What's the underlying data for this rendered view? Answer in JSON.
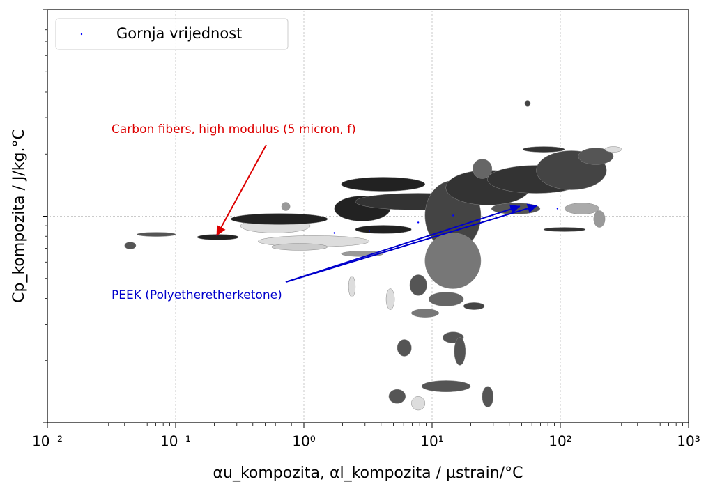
{
  "chart_data": {
    "type": "ellipse-scatter",
    "xlabel": "αu_kompozita, αl_kompozita / μstrain/°C",
    "ylabel": "Cp_kompozita / J/kg.°C",
    "xscale": "log",
    "yscale": "log",
    "xlim": [
      0.01,
      1000
    ],
    "ylim": [
      100,
      10000
    ],
    "xticks": [
      {
        "value": 0.01,
        "label": "10⁻²"
      },
      {
        "value": 0.1,
        "label": "10⁻¹"
      },
      {
        "value": 1,
        "label": "10⁰"
      },
      {
        "value": 10,
        "label": "10¹"
      },
      {
        "value": 100,
        "label": "10²"
      },
      {
        "value": 1000,
        "label": "10³"
      }
    ],
    "yticks": [
      100,
      1000,
      10000
    ],
    "y_tick_labels": false,
    "grid": true,
    "legend": "upper left",
    "ellipses": {
      "x_low": [
        0.04,
        0.05,
        0.147,
        0.32,
        0.27,
        0.44,
        0.56,
        1.73,
        1.96,
        2.52,
        8.8,
        8.8,
        6.7,
        9.4,
        12.8,
        27,
        65,
        138,
        51,
        108,
        182,
        74,
        20.7,
        5.35,
        12.1,
        14.9,
        8.3,
        4.6,
        6.9,
        24.6,
        4.38,
        2.23,
        52.8,
        2.52,
        29,
        1.96,
        0.67,
        223,
        17.6,
        6.9
      ],
      "x_high": [
        0.049,
        0.1,
        0.31,
        1.12,
        1.53,
        3.24,
        1.53,
        4.72,
        8.8,
        24,
        24,
        24,
        9.1,
        17.6,
        58,
        157,
        229,
        259,
        108,
        201,
        223,
        157,
        29.3,
        6.9,
        17.6,
        18.2,
        19.9,
        6.2,
        8.8,
        30,
        5.09,
        2.52,
        58.4,
        6.9,
        69.5,
        4.17,
        0.78,
        301,
        25.6,
        11.3
      ],
      "y_low": [
        693,
        798,
        768,
        830,
        911,
        711,
        684,
        946,
        1322,
        1072,
        684,
        446,
        413,
        367,
        1132,
        1292,
        1343,
        1778,
        2042,
        1023,
        883,
        843,
        1521,
        210,
        243,
        190,
        141,
        124,
        115,
        119,
        353,
        406,
        3412,
        824,
        1023,
        638,
        1064,
        2042,
        353,
        324
      ],
      "y_high": [
        750,
        836,
        817,
        970,
        1031,
        805,
        738,
        1253,
        1545,
        1292,
        1486,
        830,
        521,
        429,
        1670,
        1762,
        2075,
        2141,
        2173,
        1159,
        1064,
        883,
        1891,
        253,
        275,
        259,
        160,
        145,
        134,
        150,
        446,
        513,
        3631,
        904,
        1159,
        678,
        1168,
        2173,
        382,
        356
      ],
      "colors": [
        "#555555",
        "#555555",
        "#222222",
        "#dddddd",
        "#222222",
        "#dddddd",
        "#cccccc",
        "#222222",
        "#222222",
        "#333333",
        "#444444",
        "#777777",
        "#555555",
        "#666666",
        "#333333",
        "#333333",
        "#444444",
        "#555555",
        "#333333",
        "#aaaaaa",
        "#999999",
        "#333333",
        "#666666",
        "#555555",
        "#555555",
        "#555555",
        "#555555",
        "#555555",
        "#dddddd",
        "#555555",
        "#dddddd",
        "#dddddd",
        "#444444",
        "#222222",
        "#555555",
        "#999999",
        "#999999",
        "#dddddd",
        "#444444",
        "#777777"
      ]
    },
    "series": [
      {
        "name": "Gornja vrijednost",
        "color": "#0000ff",
        "x": [
          0.21,
          1.73,
          3.24,
          7.8,
          14.6,
          47.8,
          65,
          95
        ],
        "values": [
          811,
          830,
          850,
          933,
          1008,
          1115,
          1123,
          1089
        ]
      }
    ],
    "annotations": [
      {
        "text": "Carbon fibers, high modulus (5 micron, f)",
        "color": "#dd0000",
        "xy": [
          [
            0.21,
            811
          ]
        ]
      },
      {
        "text": "PEEK (Polyetheretherketone)",
        "color": "#0000cc",
        "xy": [
          [
            47.8,
            1115
          ],
          [
            65,
            1123
          ]
        ]
      }
    ]
  }
}
